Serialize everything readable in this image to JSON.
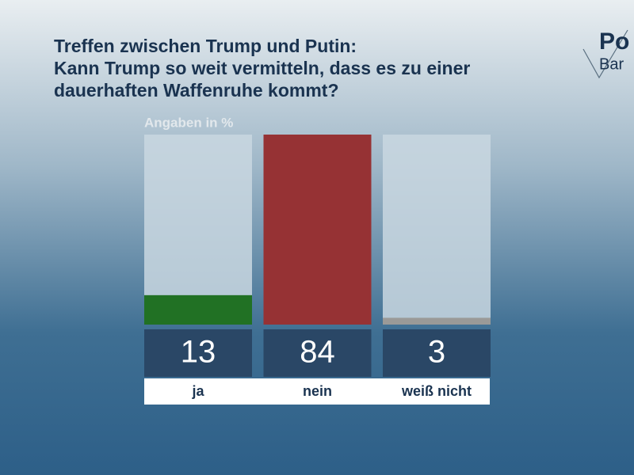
{
  "chart_data": {
    "type": "bar",
    "title": [
      "Treffen zwischen Trump und Putin:",
      "Kann Trump so weit vermitteln, dass es zu einer",
      "dauerhaften Waffenruhe kommt?"
    ],
    "subtitle": "Angaben in %",
    "logo": [
      "Po",
      "Bar"
    ],
    "categories": [
      "ja",
      "nein",
      "weiß nicht"
    ],
    "values": [
      13,
      84,
      3
    ],
    "colors": [
      "#217124",
      "#963234",
      "#9a9a98"
    ],
    "ylim": [
      0,
      84
    ]
  }
}
